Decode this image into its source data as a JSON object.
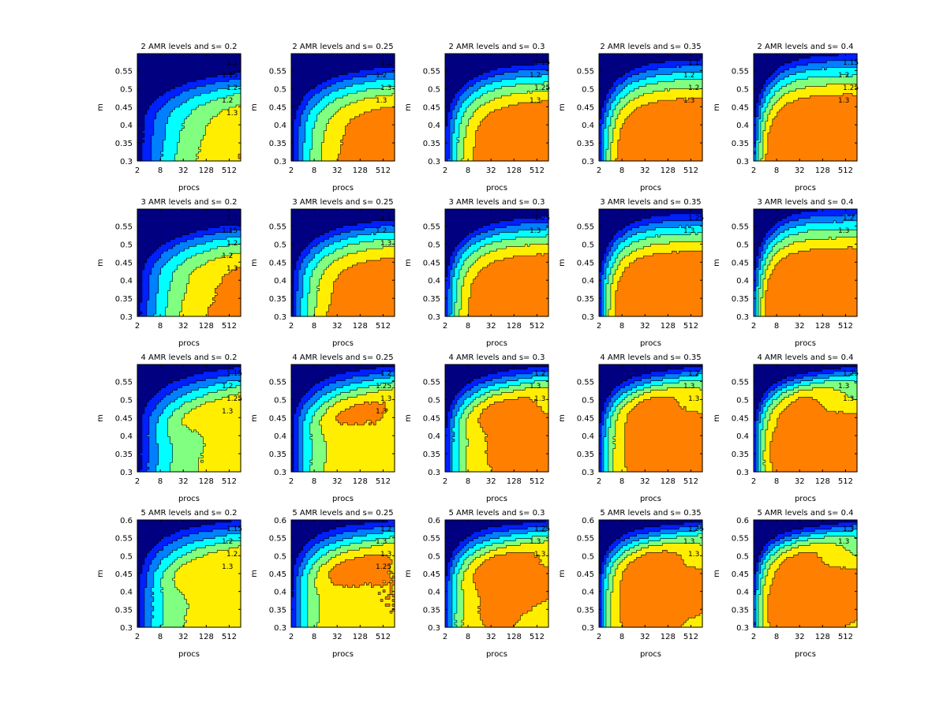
{
  "figure": {
    "background": "#ffffff",
    "xlabel": "procs",
    "ylabel": "m",
    "x_ticks": [
      "2",
      "8",
      "32",
      "128",
      "512"
    ],
    "x_tick_values": [
      2,
      8,
      32,
      128,
      512
    ],
    "xlim": [
      2,
      1024
    ],
    "x_scale": "log2",
    "y_ticks_short": [
      "0.3",
      "0.35",
      "0.4",
      "0.45",
      "0.5",
      "0.55"
    ],
    "y_ticks_long": [
      "0.3",
      "0.35",
      "0.4",
      "0.45",
      "0.5",
      "0.55",
      "0.6"
    ],
    "y_tick_values_short": [
      0.3,
      0.35,
      0.4,
      0.45,
      0.5,
      0.55
    ],
    "y_tick_values_long": [
      0.3,
      0.35,
      0.4,
      0.45,
      0.5,
      0.55,
      0.6
    ],
    "ylim": [
      0.3,
      0.6
    ],
    "colormap": {
      "levels": [
        "<1.05",
        "1.05-1.1",
        "1.1-1.15",
        "1.15-1.2",
        "1.2-1.25",
        "1.25-1.3",
        ">1.3",
        "highest"
      ],
      "colors": [
        "#000080",
        "#0020ff",
        "#0080ff",
        "#00ffff",
        "#80ff80",
        "#ffee00",
        "#ff8000",
        "#ff8000"
      ]
    }
  },
  "chart_data": [
    {
      "type": "contour",
      "title": "2 AMR levels and s= 0.2",
      "amr_levels": 2,
      "s": 0.2,
      "contour_labels": [
        "1.1",
        "1.15",
        "1.2",
        "1.2",
        "1.3"
      ]
    },
    {
      "type": "contour",
      "title": "2 AMR levels and s= 0.25",
      "amr_levels": 2,
      "s": 0.25,
      "contour_labels": [
        "1.1",
        "1.2",
        "1.3",
        "1.3"
      ]
    },
    {
      "type": "contour",
      "title": "2 AMR levels and s= 0.3",
      "amr_levels": 2,
      "s": 0.3,
      "contour_labels": [
        "1.15",
        "1.2",
        "1.25",
        "1.3"
      ]
    },
    {
      "type": "contour",
      "title": "2 AMR levels and s= 0.35",
      "amr_levels": 2,
      "s": 0.35,
      "contour_labels": [
        "1.1",
        "1.2",
        "1.2",
        "1.3"
      ]
    },
    {
      "type": "contour",
      "title": "2 AMR levels and s= 0.4",
      "amr_levels": 2,
      "s": 0.4,
      "contour_labels": [
        "1.15",
        "1.2",
        "1.25",
        "1.3"
      ]
    },
    {
      "type": "contour",
      "title": "3 AMR levels and s= 0.2",
      "amr_levels": 3,
      "s": 0.2,
      "contour_labels": [
        "1.1",
        "1.15",
        "1.2",
        "1.2",
        "1.3"
      ]
    },
    {
      "type": "contour",
      "title": "3 AMR levels and s= 0.25",
      "amr_levels": 3,
      "s": 0.25,
      "contour_labels": [
        "1.1",
        "1.2",
        "1.3"
      ]
    },
    {
      "type": "contour",
      "title": "3 AMR levels and s= 0.3",
      "amr_levels": 3,
      "s": 0.3,
      "contour_labels": [
        "1.25",
        "1.3"
      ]
    },
    {
      "type": "contour",
      "title": "3 AMR levels and s= 0.35",
      "amr_levels": 3,
      "s": 0.35,
      "contour_labels": [
        "1.25",
        "1.3"
      ]
    },
    {
      "type": "contour",
      "title": "3 AMR levels and s= 0.4",
      "amr_levels": 3,
      "s": 0.4,
      "contour_labels": [
        "1.2",
        "1.3"
      ]
    },
    {
      "type": "contour",
      "title": "4 AMR levels and s= 0.2",
      "amr_levels": 4,
      "s": 0.2,
      "contour_labels": [
        "1.15",
        "1.2",
        "1.25",
        "1.3"
      ]
    },
    {
      "type": "contour",
      "title": "4 AMR levels and s= 0.25",
      "amr_levels": 4,
      "s": 0.25,
      "contour_labels": [
        "1.2",
        "1.25",
        "1.3",
        "1.3"
      ]
    },
    {
      "type": "contour",
      "title": "4 AMR levels and s= 0.3",
      "amr_levels": 4,
      "s": 0.3,
      "contour_labels": [
        "1.2",
        "1.3",
        "1.3"
      ]
    },
    {
      "type": "contour",
      "title": "4 AMR levels and s= 0.35",
      "amr_levels": 4,
      "s": 0.35,
      "contour_labels": [
        "1.2",
        "1.3",
        "1.3"
      ]
    },
    {
      "type": "contour",
      "title": "4 AMR levels and s= 0.4",
      "amr_levels": 4,
      "s": 0.4,
      "contour_labels": [
        "1.25",
        "1.3",
        "1.3"
      ]
    },
    {
      "type": "contour",
      "title": "5 AMR levels and s= 0.2",
      "amr_levels": 5,
      "s": 0.2,
      "contour_labels": [
        "1.15",
        "1.2",
        "1.2",
        "1.3"
      ]
    },
    {
      "type": "contour",
      "title": "5 AMR levels and s= 0.25",
      "amr_levels": 5,
      "s": 0.25,
      "contour_labels": [
        "1.2",
        "1.3",
        "1.3",
        "1.25"
      ]
    },
    {
      "type": "contour",
      "title": "5 AMR levels and s= 0.3",
      "amr_levels": 5,
      "s": 0.3,
      "contour_labels": [
        "1.25",
        "1.3",
        "1.3"
      ]
    },
    {
      "type": "contour",
      "title": "5 AMR levels and s= 0.35",
      "amr_levels": 5,
      "s": 0.35,
      "contour_labels": [
        "1.25",
        "1.3",
        "1.3"
      ]
    },
    {
      "type": "contour",
      "title": "5 AMR levels and s= 0.4",
      "amr_levels": 5,
      "s": 0.4,
      "contour_labels": [
        "1.3",
        "1.3"
      ]
    }
  ]
}
